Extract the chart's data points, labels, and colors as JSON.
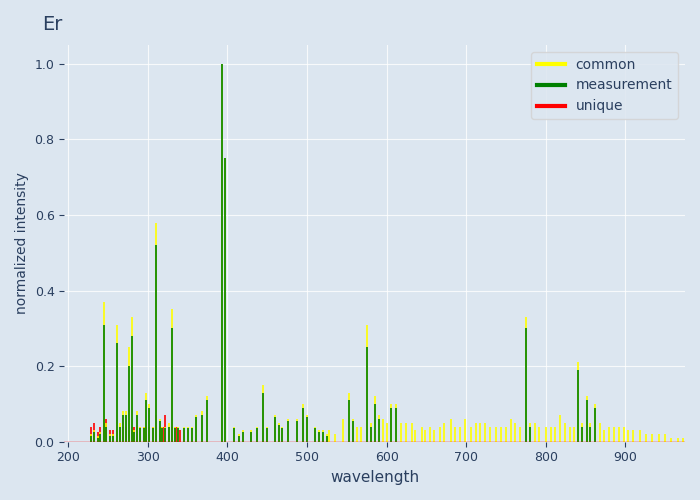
{
  "title": "Er",
  "xlabel": "wavelength",
  "ylabel": "normalized intensity",
  "xlim": [
    195,
    975
  ],
  "ylim": [
    0,
    1.05
  ],
  "bg_color": "#dce6f0",
  "fig_bg": "#dce6f0",
  "common_lines": [
    [
      245,
      0.37
    ],
    [
      261,
      0.31
    ],
    [
      276,
      0.25
    ],
    [
      280,
      0.33
    ],
    [
      298,
      0.13
    ],
    [
      302,
      0.1
    ],
    [
      310,
      0.58
    ],
    [
      330,
      0.35
    ],
    [
      360,
      0.07
    ],
    [
      368,
      0.08
    ],
    [
      374,
      0.12
    ],
    [
      393,
      1.0
    ],
    [
      397,
      0.75
    ],
    [
      445,
      0.15
    ],
    [
      460,
      0.07
    ],
    [
      476,
      0.06
    ],
    [
      495,
      0.1
    ],
    [
      553,
      0.13
    ],
    [
      576,
      0.31
    ],
    [
      586,
      0.12
    ],
    [
      606,
      0.1
    ],
    [
      612,
      0.1
    ],
    [
      775,
      0.33
    ],
    [
      840,
      0.21
    ],
    [
      852,
      0.12
    ],
    [
      862,
      0.1
    ]
  ],
  "common_small": [
    [
      228,
      0.02
    ],
    [
      232,
      0.03
    ],
    [
      237,
      0.015
    ],
    [
      240,
      0.025
    ],
    [
      248,
      0.05
    ],
    [
      252,
      0.02
    ],
    [
      256,
      0.02
    ],
    [
      265,
      0.05
    ],
    [
      269,
      0.08
    ],
    [
      272,
      0.08
    ],
    [
      283,
      0.03
    ],
    [
      287,
      0.08
    ],
    [
      290,
      0.04
    ],
    [
      295,
      0.04
    ],
    [
      306,
      0.04
    ],
    [
      315,
      0.06
    ],
    [
      318,
      0.04
    ],
    [
      322,
      0.04
    ],
    [
      326,
      0.05
    ],
    [
      334,
      0.04
    ],
    [
      338,
      0.04
    ],
    [
      345,
      0.04
    ],
    [
      350,
      0.04
    ],
    [
      355,
      0.04
    ],
    [
      408,
      0.04
    ],
    [
      415,
      0.02
    ],
    [
      420,
      0.03
    ],
    [
      430,
      0.03
    ],
    [
      437,
      0.04
    ],
    [
      450,
      0.04
    ],
    [
      465,
      0.05
    ],
    [
      468,
      0.04
    ],
    [
      488,
      0.06
    ],
    [
      500,
      0.07
    ],
    [
      510,
      0.04
    ],
    [
      515,
      0.03
    ],
    [
      520,
      0.03
    ],
    [
      525,
      0.02
    ],
    [
      528,
      0.03
    ],
    [
      535,
      0.02
    ],
    [
      545,
      0.06
    ],
    [
      558,
      0.06
    ],
    [
      563,
      0.04
    ],
    [
      568,
      0.04
    ],
    [
      580,
      0.05
    ],
    [
      590,
      0.07
    ],
    [
      596,
      0.06
    ],
    [
      600,
      0.05
    ],
    [
      618,
      0.05
    ],
    [
      625,
      0.05
    ],
    [
      632,
      0.05
    ],
    [
      636,
      0.03
    ],
    [
      645,
      0.04
    ],
    [
      648,
      0.03
    ],
    [
      655,
      0.04
    ],
    [
      660,
      0.03
    ],
    [
      667,
      0.04
    ],
    [
      672,
      0.05
    ],
    [
      681,
      0.06
    ],
    [
      686,
      0.04
    ],
    [
      692,
      0.04
    ],
    [
      698,
      0.06
    ],
    [
      706,
      0.04
    ],
    [
      712,
      0.05
    ],
    [
      718,
      0.05
    ],
    [
      724,
      0.05
    ],
    [
      730,
      0.04
    ],
    [
      738,
      0.04
    ],
    [
      744,
      0.04
    ],
    [
      750,
      0.04
    ],
    [
      756,
      0.06
    ],
    [
      762,
      0.05
    ],
    [
      768,
      0.04
    ],
    [
      780,
      0.05
    ],
    [
      786,
      0.05
    ],
    [
      792,
      0.04
    ],
    [
      800,
      0.04
    ],
    [
      806,
      0.04
    ],
    [
      812,
      0.04
    ],
    [
      818,
      0.07
    ],
    [
      824,
      0.05
    ],
    [
      830,
      0.04
    ],
    [
      836,
      0.04
    ],
    [
      845,
      0.05
    ],
    [
      856,
      0.05
    ],
    [
      868,
      0.05
    ],
    [
      873,
      0.03
    ],
    [
      880,
      0.04
    ],
    [
      886,
      0.04
    ],
    [
      892,
      0.04
    ],
    [
      898,
      0.04
    ],
    [
      904,
      0.03
    ],
    [
      910,
      0.03
    ],
    [
      918,
      0.03
    ],
    [
      926,
      0.02
    ],
    [
      934,
      0.02
    ],
    [
      942,
      0.02
    ],
    [
      950,
      0.02
    ],
    [
      958,
      0.01
    ],
    [
      966,
      0.01
    ],
    [
      972,
      0.01
    ]
  ],
  "measurement_lines": [
    [
      245,
      0.31
    ],
    [
      261,
      0.26
    ],
    [
      276,
      0.2
    ],
    [
      280,
      0.28
    ],
    [
      298,
      0.11
    ],
    [
      302,
      0.09
    ],
    [
      310,
      0.52
    ],
    [
      330,
      0.3
    ],
    [
      360,
      0.065
    ],
    [
      368,
      0.07
    ],
    [
      374,
      0.11
    ],
    [
      393,
      1.0
    ],
    [
      397,
      0.75
    ],
    [
      445,
      0.13
    ],
    [
      460,
      0.065
    ],
    [
      476,
      0.055
    ],
    [
      495,
      0.09
    ],
    [
      553,
      0.11
    ],
    [
      576,
      0.25
    ],
    [
      586,
      0.1
    ],
    [
      606,
      0.09
    ],
    [
      612,
      0.09
    ],
    [
      775,
      0.3
    ],
    [
      840,
      0.19
    ],
    [
      852,
      0.11
    ],
    [
      862,
      0.09
    ]
  ],
  "measurement_small": [
    [
      228,
      0.015
    ],
    [
      232,
      0.025
    ],
    [
      237,
      0.01
    ],
    [
      240,
      0.02
    ],
    [
      248,
      0.04
    ],
    [
      252,
      0.015
    ],
    [
      256,
      0.015
    ],
    [
      265,
      0.04
    ],
    [
      269,
      0.07
    ],
    [
      272,
      0.07
    ],
    [
      283,
      0.025
    ],
    [
      287,
      0.07
    ],
    [
      290,
      0.035
    ],
    [
      295,
      0.035
    ],
    [
      306,
      0.035
    ],
    [
      315,
      0.055
    ],
    [
      318,
      0.035
    ],
    [
      322,
      0.035
    ],
    [
      326,
      0.04
    ],
    [
      334,
      0.035
    ],
    [
      338,
      0.035
    ],
    [
      345,
      0.035
    ],
    [
      350,
      0.035
    ],
    [
      355,
      0.035
    ],
    [
      408,
      0.035
    ],
    [
      415,
      0.015
    ],
    [
      420,
      0.025
    ],
    [
      430,
      0.025
    ],
    [
      437,
      0.035
    ],
    [
      450,
      0.035
    ],
    [
      465,
      0.045
    ],
    [
      468,
      0.035
    ],
    [
      488,
      0.055
    ],
    [
      500,
      0.065
    ],
    [
      510,
      0.035
    ],
    [
      515,
      0.025
    ],
    [
      520,
      0.025
    ],
    [
      525,
      0.015
    ],
    [
      558,
      0.055
    ],
    [
      580,
      0.04
    ],
    [
      590,
      0.06
    ],
    [
      780,
      0.04
    ],
    [
      845,
      0.04
    ],
    [
      856,
      0.04
    ]
  ],
  "unique_lines": [
    [
      228,
      0.04
    ],
    [
      232,
      0.05
    ],
    [
      237,
      0.025
    ],
    [
      240,
      0.04
    ],
    [
      245,
      0.05
    ],
    [
      248,
      0.06
    ],
    [
      252,
      0.03
    ],
    [
      256,
      0.03
    ],
    [
      261,
      0.03
    ],
    [
      265,
      0.03
    ],
    [
      269,
      0.04
    ],
    [
      272,
      0.04
    ],
    [
      276,
      0.03
    ],
    [
      280,
      0.03
    ],
    [
      283,
      0.04
    ],
    [
      287,
      0.04
    ],
    [
      290,
      0.04
    ],
    [
      295,
      0.04
    ],
    [
      298,
      0.04
    ],
    [
      302,
      0.04
    ],
    [
      306,
      0.04
    ],
    [
      310,
      0.07
    ],
    [
      315,
      0.04
    ],
    [
      318,
      0.04
    ],
    [
      320,
      0.04
    ],
    [
      322,
      0.07
    ],
    [
      326,
      0.04
    ],
    [
      330,
      0.04
    ],
    [
      334,
      0.04
    ],
    [
      337,
      0.04
    ],
    [
      340,
      0.03
    ]
  ]
}
